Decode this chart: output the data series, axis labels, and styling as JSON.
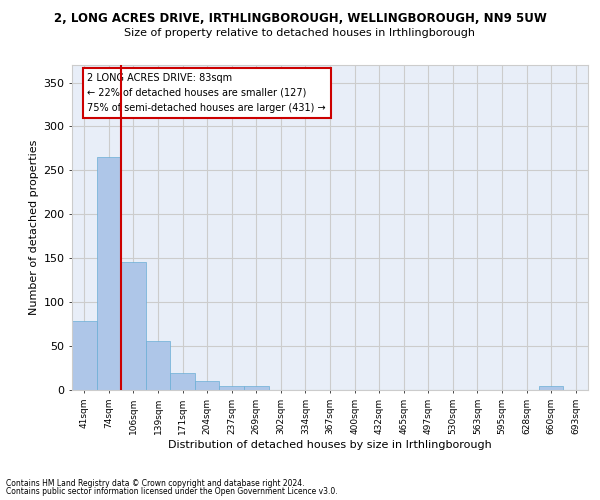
{
  "title": "2, LONG ACRES DRIVE, IRTHLINGBOROUGH, WELLINGBOROUGH, NN9 5UW",
  "subtitle": "Size of property relative to detached houses in Irthlingborough",
  "xlabel": "Distribution of detached houses by size in Irthlingborough",
  "ylabel": "Number of detached properties",
  "footnote1": "Contains HM Land Registry data © Crown copyright and database right 2024.",
  "footnote2": "Contains public sector information licensed under the Open Government Licence v3.0.",
  "bar_color": "#aec6e8",
  "bar_edge_color": "#6aaed6",
  "grid_color": "#cccccc",
  "bg_color": "#e8eef8",
  "red_line_color": "#cc0000",
  "annotation_box_color": "#cc0000",
  "categories": [
    "41sqm",
    "74sqm",
    "106sqm",
    "139sqm",
    "171sqm",
    "204sqm",
    "237sqm",
    "269sqm",
    "302sqm",
    "334sqm",
    "367sqm",
    "400sqm",
    "432sqm",
    "465sqm",
    "497sqm",
    "530sqm",
    "563sqm",
    "595sqm",
    "628sqm",
    "660sqm",
    "693sqm"
  ],
  "values": [
    78,
    265,
    146,
    56,
    19,
    10,
    4,
    4,
    0,
    0,
    0,
    0,
    0,
    0,
    0,
    0,
    0,
    0,
    0,
    4,
    0
  ],
  "ylim": [
    0,
    370
  ],
  "yticks": [
    0,
    50,
    100,
    150,
    200,
    250,
    300,
    350
  ],
  "red_line_x": 1.5,
  "annotation_text_line1": "2 LONG ACRES DRIVE: 83sqm",
  "annotation_text_line2": "← 22% of detached houses are smaller (127)",
  "annotation_text_line3": "75% of semi-detached houses are larger (431) →"
}
